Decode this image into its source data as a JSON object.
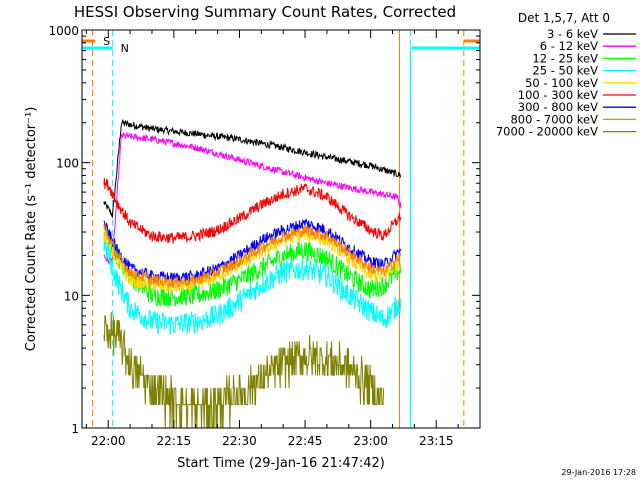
{
  "chart_data": {
    "type": "line",
    "title": "HESSI Observing Summary Count Rates, Corrected",
    "xlabel": "Start Time (29-Jan-16 21:47:42)",
    "ylabel": "Corrected Count Rate (s⁻¹ detector⁻¹)",
    "yscale": "log",
    "ylim": [
      1,
      1000
    ],
    "xlim_minutes": [
      -6,
      85
    ],
    "x_tick_labels": [
      "22:00",
      "22:15",
      "22:30",
      "22:45",
      "23:00",
      "23:15"
    ],
    "x_tick_minutes": [
      0,
      15,
      30,
      45,
      60,
      75
    ],
    "y_tick_labels": [
      "1",
      "10",
      "100",
      "1000"
    ],
    "y_tick_values": [
      1,
      10,
      100,
      1000
    ],
    "legend_title": "Det 1,5,7, Att 0",
    "legend_position": "right, outside",
    "footer_date": "29-Jan-2016 17:28",
    "markers": [
      {
        "label": "S",
        "color": "#ff7f00",
        "bar_minutes": [
          -6,
          -3
        ],
        "line_minutes": [
          -3.6,
          81.3
        ]
      },
      {
        "label": "N",
        "color": "#00ffff",
        "bar_minutes": [
          -6,
          1
        ],
        "line_minutes": [
          1,
          69.1
        ]
      }
    ],
    "series": [
      {
        "name": "3 - 6 keV",
        "color": "#000000",
        "x": [
          -1,
          0,
          1,
          3,
          10,
          20,
          30,
          40,
          50,
          60,
          67
        ],
        "y": [
          50,
          45,
          40,
          200,
          180,
          165,
          150,
          130,
          110,
          95,
          80
        ]
      },
      {
        "name": "6 - 12 keV",
        "color": "#ff00ff",
        "x": [
          -1,
          0,
          1,
          3,
          10,
          20,
          30,
          40,
          50,
          60,
          66,
          67
        ],
        "y": [
          20,
          18,
          19,
          160,
          150,
          130,
          105,
          85,
          70,
          60,
          55,
          46
        ]
      },
      {
        "name": "12 - 25 keV",
        "color": "#00ff00",
        "x": [
          -1,
          0,
          2,
          5,
          10,
          15,
          20,
          25,
          30,
          35,
          40,
          45,
          50,
          55,
          60,
          63,
          67
        ],
        "y": [
          30,
          27,
          20,
          14,
          10,
          9.8,
          10,
          11,
          13,
          16,
          20,
          22,
          19,
          14,
          11,
          12,
          16
        ]
      },
      {
        "name": "25 - 50 keV",
        "color": "#00ffff",
        "x": [
          -1,
          0,
          2,
          5,
          10,
          15,
          20,
          25,
          30,
          35,
          40,
          45,
          50,
          55,
          60,
          63,
          67
        ],
        "y": [
          25,
          20,
          13,
          8,
          6.3,
          6,
          6.3,
          7,
          9,
          12,
          15,
          16,
          14,
          10,
          7.5,
          6.5,
          9
        ]
      },
      {
        "name": "50 - 100 keV",
        "color": "#ffd700",
        "x": [
          -1,
          0,
          2,
          5,
          10,
          15,
          20,
          25,
          30,
          35,
          40,
          45,
          50,
          55,
          60,
          63,
          67
        ],
        "y": [
          29,
          25,
          18,
          13,
          12,
          11.5,
          12,
          14,
          17,
          21,
          26,
          29,
          26,
          19,
          14,
          14,
          18
        ]
      },
      {
        "name": "100 - 300 keV",
        "color": "#ff0000",
        "x": [
          -1,
          0,
          2,
          5,
          10,
          15,
          20,
          25,
          30,
          35,
          40,
          45,
          50,
          55,
          60,
          63,
          67
        ],
        "y": [
          70,
          68,
          50,
          35,
          28,
          27,
          28,
          31,
          38,
          48,
          58,
          64,
          55,
          40,
          31,
          28,
          40
        ]
      },
      {
        "name": "300 - 800 keV",
        "color": "#0000ff",
        "x": [
          -1,
          0,
          2,
          5,
          10,
          15,
          20,
          25,
          30,
          35,
          40,
          45,
          50,
          55,
          60,
          63,
          67
        ],
        "y": [
          35,
          30,
          22,
          16,
          14,
          13.5,
          14,
          16,
          20,
          26,
          31,
          35,
          31,
          23,
          18,
          17,
          22
        ]
      },
      {
        "name": "800 - 7000 keV",
        "color": "#ff7f00",
        "x": [
          -1,
          0,
          2,
          5,
          10,
          15,
          20,
          25,
          30,
          35,
          40,
          45,
          50,
          55,
          60,
          63,
          67
        ],
        "y": [
          33,
          28,
          20,
          15,
          13,
          12.5,
          13,
          15,
          18,
          23,
          28,
          31,
          28,
          21,
          16,
          15,
          20
        ]
      },
      {
        "name": "7000 - 20000 keV",
        "color": "#808000",
        "x": [
          -1,
          2,
          5,
          10,
          15,
          20,
          25,
          30,
          35,
          40,
          45,
          50,
          55,
          60,
          63
        ],
        "y": [
          5.5,
          5,
          3,
          2,
          1.6,
          1.4,
          1.5,
          1.8,
          2.3,
          3,
          3.5,
          3.3,
          2.8,
          2,
          1.5
        ]
      }
    ]
  }
}
